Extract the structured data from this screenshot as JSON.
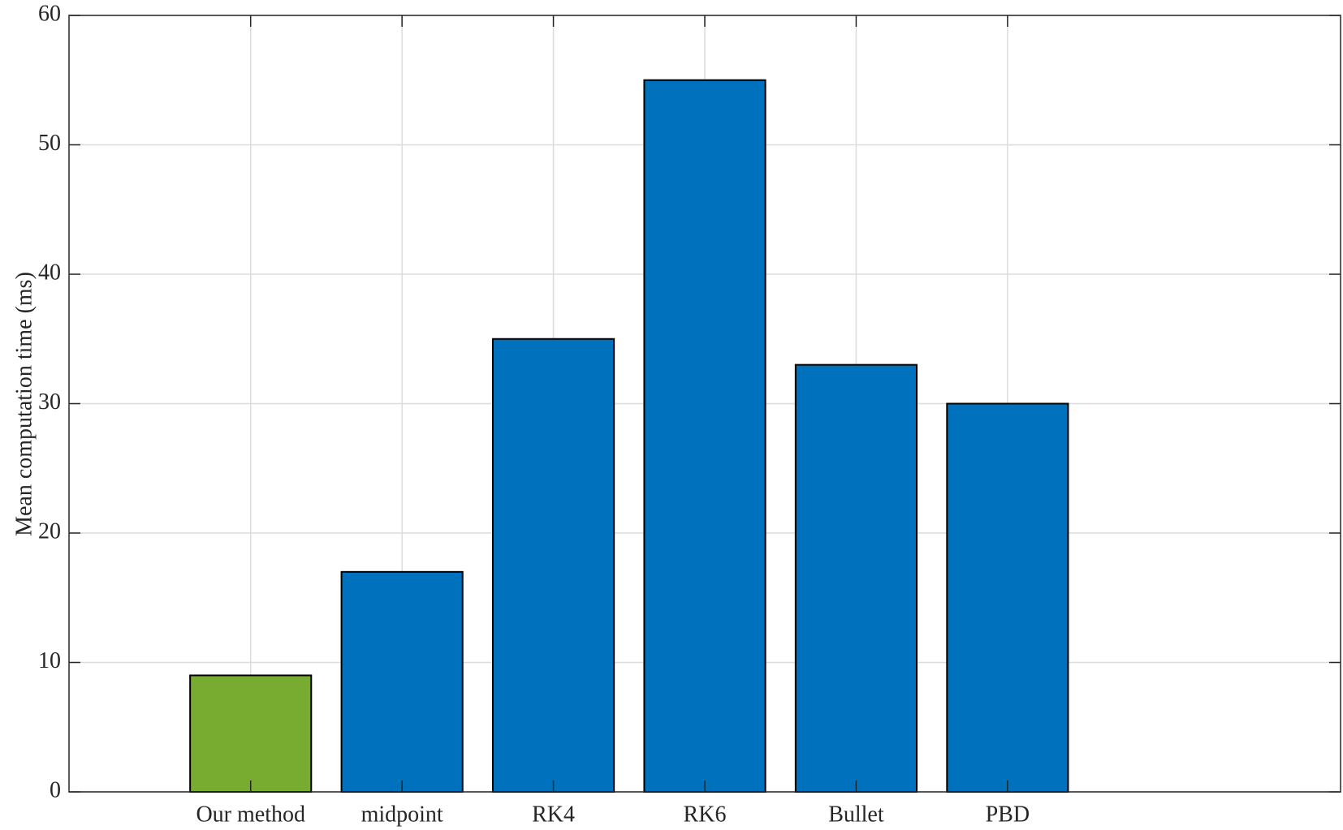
{
  "chart_data": {
    "type": "bar",
    "y_label": "Mean computation time (ms)",
    "categories": [
      "Our method",
      "midpoint",
      "RK4",
      "RK6",
      "Bullet",
      "PBD"
    ],
    "values": [
      9,
      17,
      35,
      55,
      33,
      30
    ],
    "colors": [
      "#77ac30",
      "#0072bd",
      "#0072bd",
      "#0072bd",
      "#0072bd",
      "#0072bd"
    ],
    "ylim": [
      0,
      60
    ],
    "yticks": [
      0,
      10,
      20,
      30,
      40,
      50,
      60
    ],
    "grid": true
  }
}
